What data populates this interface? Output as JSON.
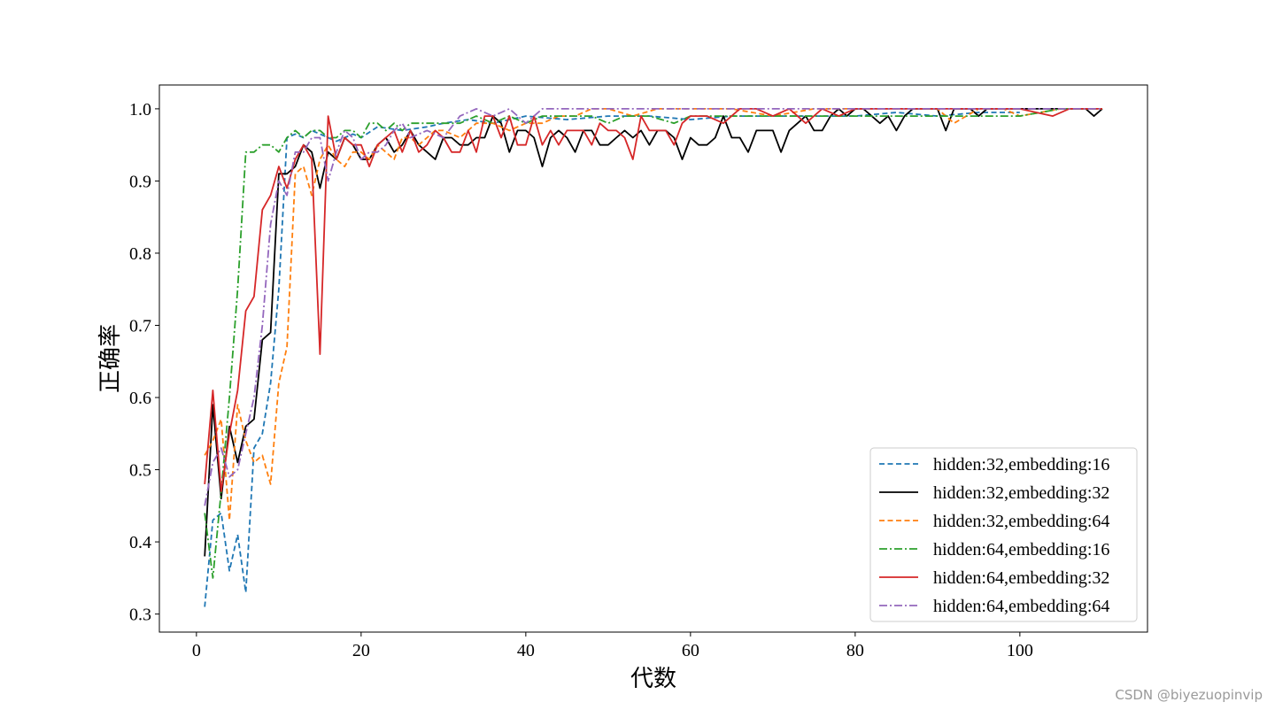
{
  "chart_data": {
    "type": "line",
    "title": "",
    "xlabel": "代数",
    "ylabel": "正确率",
    "xlim": [
      -4.5,
      115.5
    ],
    "ylim": [
      0.275,
      1.033
    ],
    "xticks": [
      0,
      20,
      40,
      60,
      80,
      100
    ],
    "yticks": [
      0.3,
      0.4,
      0.5,
      0.6,
      0.7,
      0.8,
      0.9,
      1.0
    ],
    "xtick_labels": [
      "0",
      "20",
      "40",
      "60",
      "80",
      "100"
    ],
    "ytick_labels": [
      "0.3",
      "0.4",
      "0.5",
      "0.6",
      "0.7",
      "0.8",
      "0.9",
      "1.0"
    ],
    "grid": false,
    "legend_position": "lower-right",
    "series": [
      {
        "name": "hidden:32,embedding:16",
        "color": "#1f77b4",
        "dash": "dashed",
        "x": [
          1,
          2,
          3,
          4,
          5,
          6,
          7,
          8,
          9,
          10,
          11,
          12,
          13,
          14,
          15,
          16,
          17,
          18,
          19,
          20,
          22,
          25,
          28,
          30,
          33,
          36,
          40,
          45,
          50,
          55,
          60,
          65,
          70,
          75,
          80,
          85,
          90,
          95,
          100
        ],
        "y": [
          0.31,
          0.43,
          0.44,
          0.36,
          0.41,
          0.33,
          0.53,
          0.55,
          0.62,
          0.75,
          0.96,
          0.965,
          0.96,
          0.97,
          0.965,
          0.96,
          0.955,
          0.96,
          0.965,
          0.96,
          0.975,
          0.97,
          0.975,
          0.98,
          0.985,
          0.98,
          0.99,
          0.985,
          0.99,
          0.99,
          0.985,
          0.99,
          0.99,
          0.99,
          0.99,
          0.995,
          0.99,
          0.995,
          0.995
        ]
      },
      {
        "name": "hidden:32,embedding:32",
        "color": "#000000",
        "dash": "solid",
        "x": [
          1,
          2,
          3,
          4,
          5,
          6,
          7,
          8,
          9,
          10,
          11,
          12,
          13,
          14,
          15,
          16,
          17,
          18,
          19,
          20,
          21,
          22,
          23,
          24,
          25,
          26,
          27,
          28,
          29,
          30,
          31,
          32,
          33,
          34,
          35,
          36,
          37,
          38,
          39,
          40,
          41,
          42,
          43,
          44,
          45,
          46,
          47,
          48,
          49,
          50,
          51,
          52,
          53,
          54,
          55,
          56,
          57,
          58,
          59,
          60,
          61,
          62,
          63,
          64,
          65,
          66,
          67,
          68,
          69,
          70,
          71,
          72,
          73,
          74,
          75,
          76,
          77,
          78,
          79,
          80,
          81,
          82,
          83,
          84,
          85,
          86,
          87,
          88,
          89,
          90,
          91,
          92,
          93,
          94,
          95,
          96,
          97,
          98,
          99,
          100,
          101,
          102,
          103,
          104,
          105,
          106,
          107,
          108,
          109,
          110
        ],
        "y": [
          0.38,
          0.59,
          0.46,
          0.56,
          0.51,
          0.56,
          0.57,
          0.68,
          0.69,
          0.91,
          0.91,
          0.92,
          0.95,
          0.94,
          0.89,
          0.94,
          0.93,
          0.96,
          0.95,
          0.93,
          0.93,
          0.95,
          0.96,
          0.94,
          0.95,
          0.97,
          0.95,
          0.94,
          0.93,
          0.96,
          0.96,
          0.95,
          0.95,
          0.96,
          0.96,
          0.99,
          0.98,
          0.94,
          0.97,
          0.97,
          0.96,
          0.92,
          0.96,
          0.97,
          0.96,
          0.94,
          0.97,
          0.97,
          0.95,
          0.95,
          0.96,
          0.97,
          0.96,
          0.97,
          0.95,
          0.97,
          0.97,
          0.96,
          0.93,
          0.96,
          0.95,
          0.95,
          0.96,
          0.99,
          0.96,
          0.96,
          0.94,
          0.97,
          0.97,
          0.97,
          0.94,
          0.97,
          0.98,
          0.99,
          0.97,
          0.97,
          0.99,
          1.0,
          0.99,
          1.0,
          1.0,
          0.99,
          0.98,
          0.99,
          0.97,
          0.99,
          1.0,
          1.0,
          1.0,
          1.0,
          0.97,
          1.0,
          1.0,
          1.0,
          0.99,
          1.0,
          1.0,
          1.0,
          1.0,
          1.0,
          1.0,
          1.0,
          1.0,
          1.0,
          1.0,
          1.0,
          1.0,
          1.0,
          0.99,
          1.0
        ]
      },
      {
        "name": "hidden:32,embedding:64",
        "color": "#ff7f0e",
        "dash": "dashed",
        "x": [
          1,
          2,
          3,
          4,
          5,
          6,
          7,
          8,
          9,
          10,
          11,
          12,
          13,
          14,
          15,
          16,
          17,
          18,
          19,
          20,
          21,
          22,
          23,
          24,
          25,
          26,
          27,
          28,
          29,
          30,
          32,
          34,
          36,
          38,
          40,
          42,
          44,
          46,
          48,
          50,
          53,
          56,
          60,
          65,
          70,
          75,
          80,
          85,
          90,
          92,
          95,
          98,
          100,
          105,
          110
        ],
        "y": [
          0.52,
          0.54,
          0.57,
          0.43,
          0.59,
          0.54,
          0.51,
          0.52,
          0.48,
          0.62,
          0.67,
          0.91,
          0.92,
          0.88,
          0.93,
          0.95,
          0.93,
          0.92,
          0.94,
          0.94,
          0.93,
          0.95,
          0.94,
          0.93,
          0.96,
          0.96,
          0.95,
          0.96,
          0.97,
          0.97,
          0.96,
          0.98,
          0.98,
          0.97,
          0.98,
          0.98,
          0.99,
          0.99,
          1.0,
          1.0,
          0.99,
          1.0,
          1.0,
          1.0,
          0.99,
          1.0,
          1.0,
          1.0,
          1.0,
          0.98,
          1.0,
          1.0,
          0.99,
          1.0,
          1.0
        ]
      },
      {
        "name": "hidden:64,embedding:16",
        "color": "#2ca02c",
        "dash": "dashdot",
        "x": [
          1,
          2,
          3,
          4,
          5,
          6,
          7,
          8,
          9,
          10,
          11,
          12,
          13,
          14,
          15,
          16,
          17,
          18,
          19,
          20,
          21,
          22,
          23,
          24,
          25,
          26,
          28,
          30,
          32,
          34,
          36,
          38,
          40,
          42,
          44,
          46,
          48,
          50,
          52,
          55,
          58,
          60,
          63,
          66,
          70,
          75,
          80,
          85,
          90,
          95,
          100,
          105,
          110
        ],
        "y": [
          0.44,
          0.35,
          0.47,
          0.6,
          0.75,
          0.94,
          0.94,
          0.95,
          0.95,
          0.94,
          0.96,
          0.97,
          0.96,
          0.97,
          0.97,
          0.96,
          0.96,
          0.97,
          0.97,
          0.96,
          0.98,
          0.98,
          0.97,
          0.98,
          0.97,
          0.98,
          0.98,
          0.98,
          0.98,
          0.99,
          0.98,
          0.99,
          0.98,
          0.99,
          0.99,
          0.99,
          0.99,
          0.98,
          0.99,
          0.99,
          0.98,
          0.99,
          0.99,
          0.99,
          0.99,
          0.99,
          0.99,
          0.99,
          0.99,
          0.99,
          0.99,
          1.0,
          1.0
        ]
      },
      {
        "name": "hidden:64,embedding:32",
        "color": "#d62728",
        "dash": "solid",
        "x": [
          1,
          2,
          3,
          4,
          5,
          6,
          7,
          8,
          9,
          10,
          11,
          12,
          13,
          14,
          15,
          16,
          17,
          18,
          19,
          20,
          21,
          22,
          23,
          24,
          25,
          26,
          27,
          28,
          29,
          30,
          31,
          32,
          33,
          34,
          35,
          36,
          37,
          38,
          39,
          40,
          41,
          42,
          43,
          44,
          45,
          46,
          47,
          48,
          49,
          50,
          51,
          52,
          53,
          54,
          55,
          56,
          57,
          58,
          59,
          60,
          62,
          64,
          66,
          68,
          70,
          72,
          74,
          76,
          78,
          80,
          85,
          90,
          95,
          100,
          104,
          106,
          110
        ],
        "y": [
          0.48,
          0.61,
          0.47,
          0.55,
          0.61,
          0.72,
          0.74,
          0.86,
          0.88,
          0.92,
          0.89,
          0.93,
          0.95,
          0.93,
          0.66,
          0.99,
          0.93,
          0.96,
          0.95,
          0.95,
          0.92,
          0.95,
          0.96,
          0.97,
          0.94,
          0.97,
          0.94,
          0.95,
          0.97,
          0.96,
          0.94,
          0.94,
          0.97,
          0.94,
          0.99,
          0.99,
          0.96,
          0.99,
          0.95,
          0.95,
          0.99,
          0.95,
          0.97,
          0.95,
          0.97,
          0.97,
          0.97,
          0.95,
          0.98,
          0.97,
          0.97,
          0.96,
          0.93,
          0.99,
          0.97,
          0.97,
          0.97,
          0.95,
          0.98,
          0.99,
          0.99,
          0.98,
          1.0,
          1.0,
          0.99,
          1.0,
          0.98,
          1.0,
          0.99,
          1.0,
          1.0,
          1.0,
          1.0,
          1.0,
          0.99,
          1.0,
          1.0
        ]
      },
      {
        "name": "hidden:64,embedding:64",
        "color": "#9467bd",
        "dash": "dashdot",
        "x": [
          1,
          2,
          3,
          4,
          5,
          6,
          7,
          8,
          9,
          10,
          11,
          12,
          13,
          14,
          15,
          16,
          17,
          18,
          19,
          20,
          21,
          22,
          23,
          24,
          25,
          26,
          28,
          30,
          32,
          34,
          36,
          38,
          40,
          42,
          44,
          46,
          48,
          50,
          55,
          60,
          65,
          70,
          75,
          80,
          85,
          90,
          95,
          100,
          105,
          110
        ],
        "y": [
          0.45,
          0.51,
          0.53,
          0.49,
          0.5,
          0.55,
          0.6,
          0.7,
          0.84,
          0.9,
          0.88,
          0.94,
          0.94,
          0.96,
          0.96,
          0.9,
          0.94,
          0.97,
          0.96,
          0.93,
          0.94,
          0.94,
          0.95,
          0.97,
          0.98,
          0.96,
          0.97,
          0.96,
          0.99,
          1.0,
          0.99,
          1.0,
          0.98,
          1.0,
          1.0,
          1.0,
          1.0,
          1.0,
          1.0,
          1.0,
          1.0,
          1.0,
          1.0,
          1.0,
          1.0,
          1.0,
          1.0,
          1.0,
          1.0,
          1.0
        ]
      }
    ]
  },
  "watermark": "CSDN @biyezuopinvip"
}
